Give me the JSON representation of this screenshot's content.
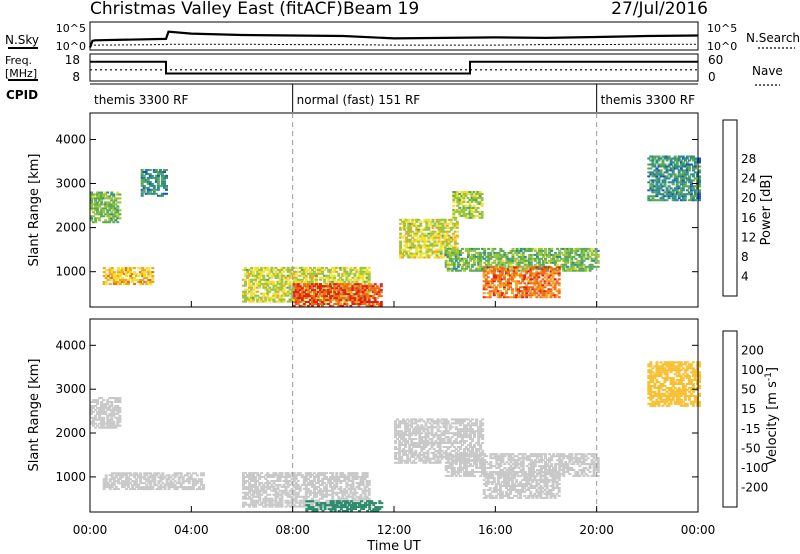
{
  "header": {
    "title": "Christmas Valley East (fitACF)",
    "beam": "Beam 19",
    "date": "27/Jul/2016"
  },
  "labels": {
    "nsky": "N.Sky",
    "nsearch": "N.Search",
    "freq_line1": "Freq.",
    "freq_line2": "[MHz]",
    "nave": "Nave",
    "cpid": "CPID"
  },
  "cpid_segments": [
    {
      "name": "themis 3300 RF",
      "start_h": 0.0,
      "end_h": 8.0
    },
    {
      "name": "normal (fast) 151 RF",
      "start_h": 8.0,
      "end_h": 20.0
    },
    {
      "name": "themis 3300 RF",
      "start_h": 20.0,
      "end_h": 24.0
    }
  ],
  "chart_data": [
    {
      "type": "line",
      "panel": "noise",
      "ylabel_left": "N.Sky",
      "ylabel_right": "N.Search",
      "left_ticks": [
        "10^5",
        "10^0"
      ],
      "right_ticks": [
        "10^5",
        "10^0"
      ],
      "x_hours": [
        0.0,
        0.1,
        0.2,
        3.0,
        3.1,
        4.0,
        6.0,
        8.0,
        10.0,
        12.0,
        14.0,
        16.0,
        18.0,
        20.0,
        22.0,
        24.0
      ],
      "log_nsky": [
        0.1,
        1.5,
        1.6,
        1.9,
        3.4,
        3.0,
        2.7,
        2.6,
        2.5,
        2.0,
        2.1,
        2.2,
        2.1,
        2.3,
        2.5,
        2.6
      ],
      "log_nsearch": [
        0.5,
        0.6,
        0.6,
        0.7,
        0.8,
        0.8,
        0.8,
        0.7,
        0.7,
        0.6,
        0.6,
        0.6,
        0.7,
        0.7,
        0.8,
        0.8
      ]
    },
    {
      "type": "line",
      "panel": "frequency",
      "ylabel_left": "Freq. [MHz]",
      "ylabel_right": "Nave",
      "left_range": [
        8,
        18
      ],
      "left_ticks": [
        "18",
        "8"
      ],
      "right_range": [
        0,
        60
      ],
      "right_ticks": [
        "60",
        "0"
      ],
      "freq_steps": [
        {
          "start_h": 0.0,
          "end_h": 3.0,
          "value": 15.5
        },
        {
          "start_h": 3.0,
          "end_h": 15.0,
          "value": 10.4
        },
        {
          "start_h": 15.0,
          "end_h": 24.0,
          "value": 15.5
        }
      ],
      "nave_value": 24
    },
    {
      "type": "heatmap",
      "panel": "power",
      "ylabel": "Slant Range [km]",
      "yticks": [
        1000,
        2000,
        3000,
        4000
      ],
      "ylim": [
        200,
        4600
      ],
      "xlim_hours": [
        0,
        24
      ],
      "colorbar_label": "Power [dB]",
      "colorbar_ticks": [
        4,
        8,
        12,
        16,
        20,
        24,
        28
      ],
      "colorbar_range": [
        0,
        32
      ],
      "colorbar_colors": [
        "#0000d8",
        "#1c54c0",
        "#2a8c8c",
        "#58a854",
        "#98c43c",
        "#f4e02c",
        "#f8a020",
        "#f06a14",
        "#e02010"
      ],
      "regions": [
        {
          "t0": 0.0,
          "t1": 1.2,
          "r0": 2100,
          "r1": 2800,
          "value": 14
        },
        {
          "t0": 0.5,
          "t1": 2.5,
          "r0": 700,
          "r1": 1100,
          "value": 22
        },
        {
          "t0": 2.0,
          "t1": 3.0,
          "r0": 2700,
          "r1": 3300,
          "value": 10
        },
        {
          "t0": 6.0,
          "t1": 11.0,
          "r0": 300,
          "r1": 1100,
          "value": 18
        },
        {
          "t0": 8.0,
          "t1": 11.5,
          "r0": 200,
          "r1": 700,
          "value": 28
        },
        {
          "t0": 12.2,
          "t1": 14.5,
          "r0": 1300,
          "r1": 2200,
          "value": 18
        },
        {
          "t0": 14.3,
          "t1": 15.5,
          "r0": 2200,
          "r1": 2800,
          "value": 16
        },
        {
          "t0": 14.0,
          "t1": 20.0,
          "r0": 1000,
          "r1": 1500,
          "value": 14
        },
        {
          "t0": 15.5,
          "t1": 18.5,
          "r0": 400,
          "r1": 1100,
          "value": 26
        },
        {
          "t0": 22.0,
          "t1": 24.0,
          "r0": 2600,
          "r1": 3600,
          "value": 10
        }
      ]
    },
    {
      "type": "heatmap",
      "panel": "velocity",
      "ylabel": "Slant Range [km]",
      "yticks": [
        1000,
        2000,
        3000,
        4000
      ],
      "ylim": [
        200,
        4600
      ],
      "xlim_hours": [
        0,
        24
      ],
      "xticks": [
        "00:00",
        "04:00",
        "08:00",
        "12:00",
        "16:00",
        "20:00",
        "00:00"
      ],
      "xlabel": "Time UT",
      "colorbar_label": "Velocity [m s^-1]",
      "colorbar_ticks": [
        -200,
        -100,
        -50,
        -15,
        15,
        50,
        100,
        200
      ],
      "colorbar_colors": [
        "#e00000",
        "#f24010",
        "#f88c1c",
        "#f8c030",
        "#c8c8c8",
        "#88cc44",
        "#2a8c6c",
        "#1c54c0",
        "#0000d0"
      ],
      "regions": [
        {
          "t0": 0.0,
          "t1": 1.2,
          "r0": 2100,
          "r1": 2800,
          "value": 0
        },
        {
          "t0": 0.5,
          "t1": 4.5,
          "r0": 700,
          "r1": 1100,
          "value": 0
        },
        {
          "t0": 6.0,
          "t1": 11.0,
          "r0": 300,
          "r1": 1100,
          "value": 0
        },
        {
          "t0": 8.5,
          "t1": 11.5,
          "r0": 200,
          "r1": 450,
          "value": 60
        },
        {
          "t0": 12.0,
          "t1": 15.5,
          "r0": 1300,
          "r1": 2300,
          "value": 0
        },
        {
          "t0": 14.0,
          "t1": 20.0,
          "r0": 1000,
          "r1": 1500,
          "value": 0
        },
        {
          "t0": 15.5,
          "t1": 18.5,
          "r0": 500,
          "r1": 1100,
          "value": 0
        },
        {
          "t0": 22.0,
          "t1": 24.0,
          "r0": 2600,
          "r1": 3600,
          "value": -20
        }
      ]
    }
  ]
}
